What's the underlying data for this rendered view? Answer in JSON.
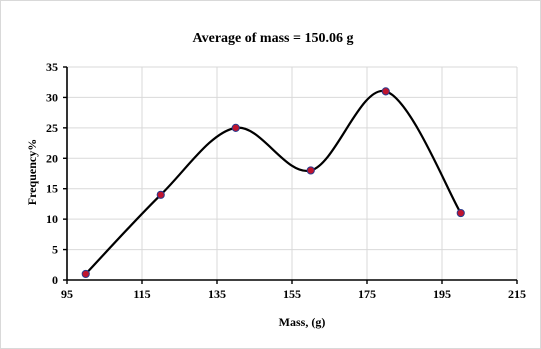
{
  "chart_data": {
    "type": "line",
    "title": "Average of mass  = 150.06 g",
    "xlabel": "Mass, (g)",
    "ylabel": "Frequency%",
    "xlim": [
      95,
      215
    ],
    "ylim": [
      0,
      35
    ],
    "xticks": [
      95,
      115,
      135,
      155,
      175,
      195,
      215
    ],
    "yticks": [
      0,
      5,
      10,
      15,
      20,
      25,
      30,
      35
    ],
    "grid": true,
    "smooth": true,
    "series": [
      {
        "x": [
          100,
          120,
          140,
          160,
          180,
          200
        ],
        "y": [
          1,
          14,
          25,
          18,
          31,
          11
        ],
        "line_color": "#000000",
        "marker_color": "#c0142e",
        "marker_edge_color": "#2b3a8c"
      }
    ]
  }
}
